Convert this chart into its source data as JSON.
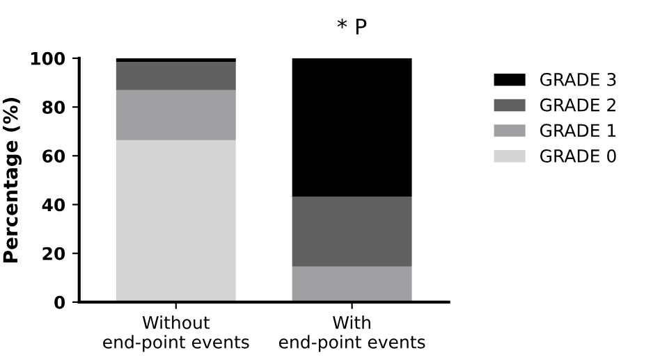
{
  "chart_data": {
    "type": "bar",
    "stacked": true,
    "ylabel": "Percentage (%)",
    "categories": [
      "Without\nend-point events",
      "With\nend-point events"
    ],
    "series": [
      {
        "name": "GRADE 0",
        "color": "#d4d4d4",
        "values": [
          66.4,
          0
        ]
      },
      {
        "name": "GRADE 1",
        "color": "#a0a0a2",
        "values": [
          20.5,
          14.6
        ]
      },
      {
        "name": "GRADE 2",
        "color": "#606060",
        "values": [
          11.6,
          28.6
        ]
      },
      {
        "name": "GRADE 3",
        "color": "#000000",
        "values": [
          1.5,
          56.8
        ]
      }
    ],
    "ylim": [
      0,
      100
    ],
    "yticks": [
      0,
      20,
      40,
      60,
      80,
      100
    ],
    "grid": false,
    "legend": "right",
    "annotations": [
      "* P"
    ]
  }
}
